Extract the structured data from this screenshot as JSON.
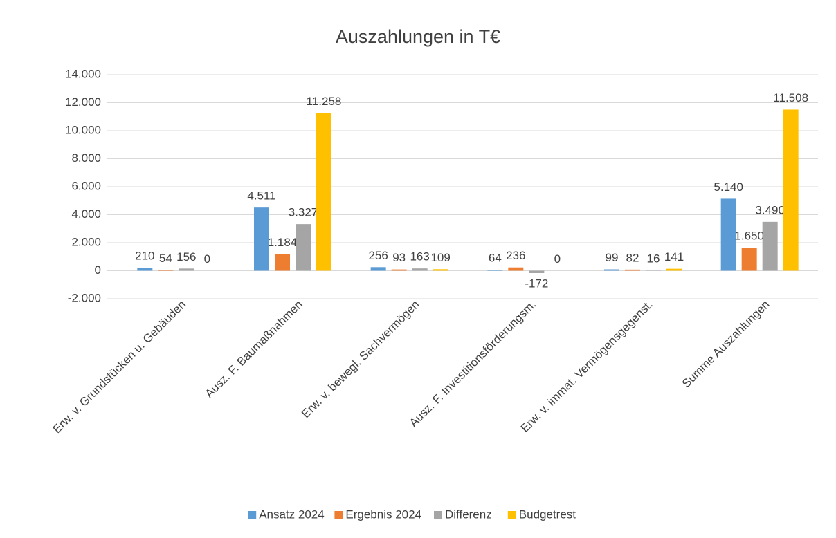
{
  "chart_data": {
    "type": "bar",
    "title": "Auszahlungen in T€",
    "categories": [
      "Erw. v. Grundstücken u. Gebäuden",
      "Ausz. F. Baumaßnahmen",
      "Erw. v. bewegl. Sachvermögen",
      "Ausz. F. Investitionsförderungsm.",
      "Erw. v. immat. Vermögensgegenst.",
      "Summe Auszahlungen"
    ],
    "series": [
      {
        "name": "Ansatz 2024",
        "color": "#5b9bd5",
        "values": [
          210,
          4511,
          256,
          64,
          99,
          5140
        ],
        "value_labels": [
          "210",
          "4.511",
          "256",
          "64",
          "99",
          "5.140"
        ]
      },
      {
        "name": "Ergebnis 2024",
        "color": "#ed7d31",
        "values": [
          54,
          1184,
          93,
          236,
          82,
          1650
        ],
        "value_labels": [
          "54",
          "1.184",
          "93",
          "236",
          "82",
          "1.650"
        ]
      },
      {
        "name": "Differenz",
        "color": "#a5a5a5",
        "values": [
          156,
          3327,
          163,
          -172,
          16,
          3490
        ],
        "value_labels": [
          "156",
          "3.327",
          "163",
          "-172",
          "16",
          "3.490"
        ]
      },
      {
        "name": "Budgetrest",
        "color": "#ffc000",
        "values": [
          0,
          11258,
          109,
          0,
          141,
          11508
        ],
        "value_labels": [
          "0",
          "11.258",
          "109",
          "0",
          "141",
          "11.508"
        ]
      }
    ],
    "ylim": [
      -2000,
      14000
    ],
    "yticks": [
      {
        "value": -2000,
        "label": "-2.000"
      },
      0,
      {
        "value": 2000,
        "label": "2.000"
      },
      {
        "value": 4000,
        "label": "4.000"
      },
      {
        "value": 6000,
        "label": "6.000"
      },
      {
        "value": 8000,
        "label": "8.000"
      },
      {
        "value": 10000,
        "label": "10.000"
      },
      {
        "value": 12000,
        "label": "12.000"
      },
      {
        "value": 14000,
        "label": "14.000"
      }
    ],
    "grid": true,
    "legend": "bottom"
  }
}
